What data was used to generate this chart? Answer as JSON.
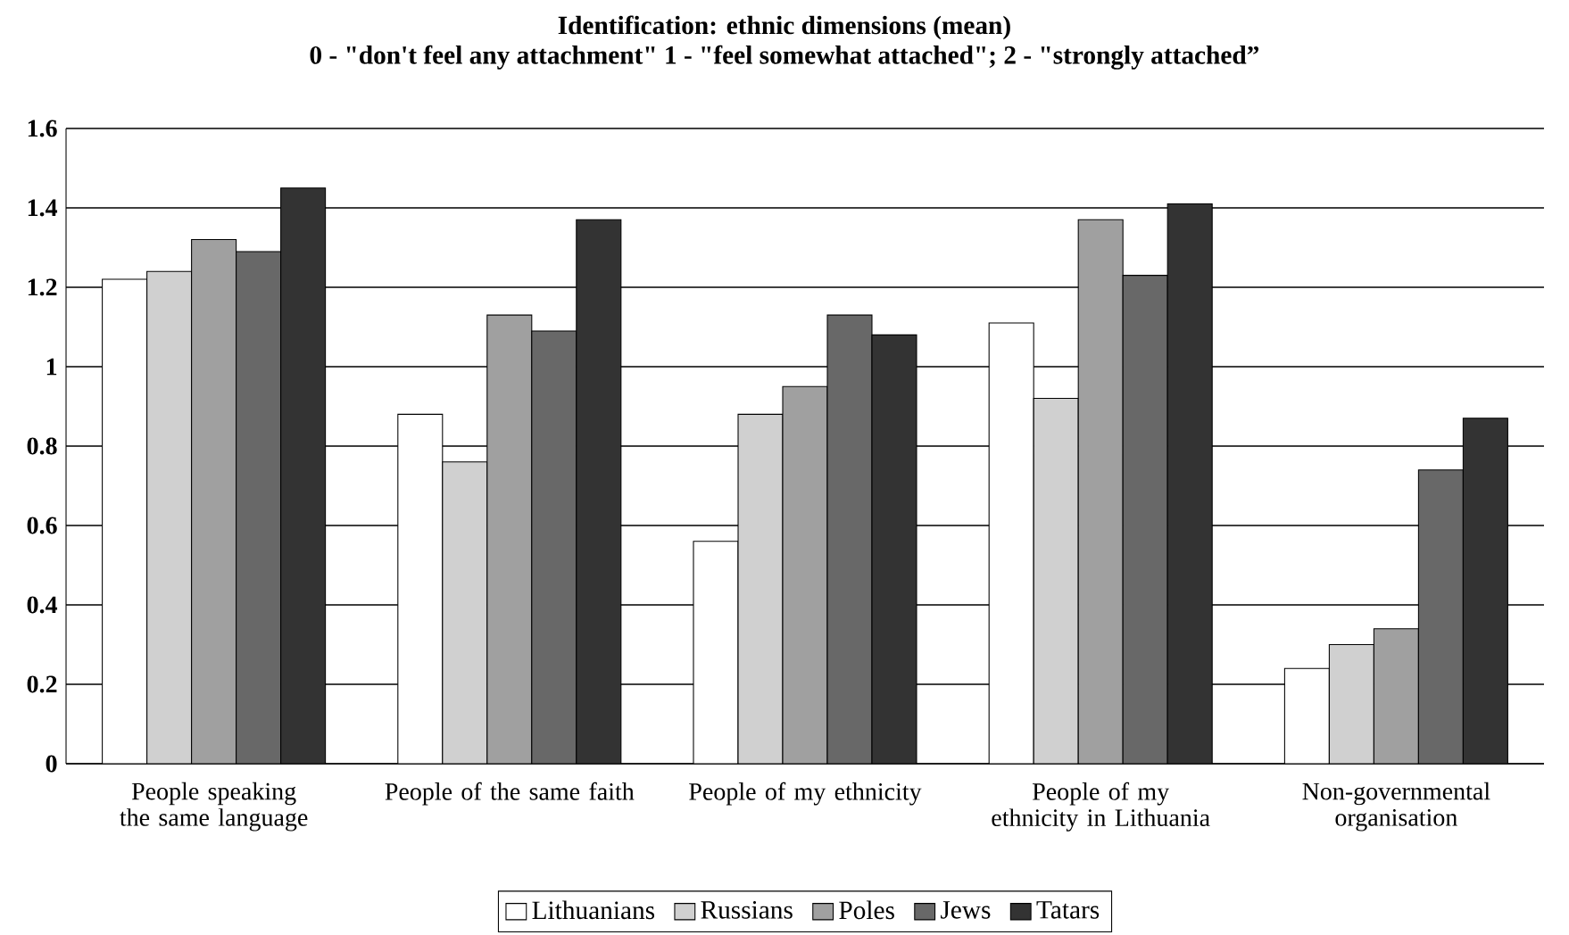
{
  "chart_data": {
    "type": "bar",
    "title": "Identification: ethnic dimensions (mean)",
    "subtitle": "0 - \"don't feel any attachment\" 1 - \"feel somewhat attached\"; 2 - \"strongly attached”",
    "categories": [
      "People speaking the same language",
      "People of the same faith",
      "People of my ethnicity",
      "People of my ethnicity in Lithuania",
      "Non-governmental organisation"
    ],
    "series": [
      {
        "name": "Lithuanians",
        "color": "#ffffff",
        "values": [
          1.22,
          0.88,
          0.56,
          1.11,
          0.24
        ]
      },
      {
        "name": "Russians",
        "color": "#d0d0d0",
        "values": [
          1.24,
          0.76,
          0.88,
          0.92,
          0.3
        ]
      },
      {
        "name": "Poles",
        "color": "#a0a0a0",
        "values": [
          1.32,
          1.13,
          0.95,
          1.37,
          0.34
        ]
      },
      {
        "name": "Jews",
        "color": "#686868",
        "values": [
          1.29,
          1.09,
          1.13,
          1.23,
          0.74
        ]
      },
      {
        "name": "Tatars",
        "color": "#333333",
        "values": [
          1.45,
          1.37,
          1.08,
          1.41,
          0.87
        ]
      }
    ],
    "ylim": [
      0,
      1.6
    ],
    "yticks": [
      0,
      0.2,
      0.4,
      0.6,
      0.8,
      1,
      1.2,
      1.4,
      1.6
    ],
    "grid": "y",
    "legend": "bottom"
  }
}
